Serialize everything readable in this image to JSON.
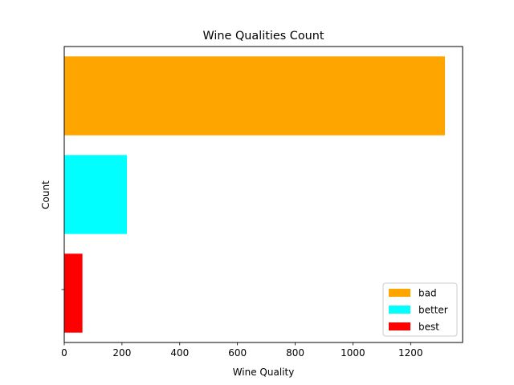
{
  "chart_data": {
    "type": "bar",
    "orientation": "horizontal",
    "title": "Wine Qualities Count",
    "xlabel": "Wine Quality",
    "ylabel": "Count",
    "xlim": [
      0,
      1380
    ],
    "xticks": [
      0,
      200,
      400,
      600,
      800,
      1000,
      1200
    ],
    "categories": [
      "bad",
      "better",
      "best"
    ],
    "values": [
      1319,
      217,
      63
    ],
    "colors": [
      "#FFA500",
      "#00FFFF",
      "#FF0000"
    ],
    "legend": {
      "placement": "lower-right",
      "entries": [
        "bad",
        "better",
        "best"
      ]
    },
    "grid": false
  }
}
